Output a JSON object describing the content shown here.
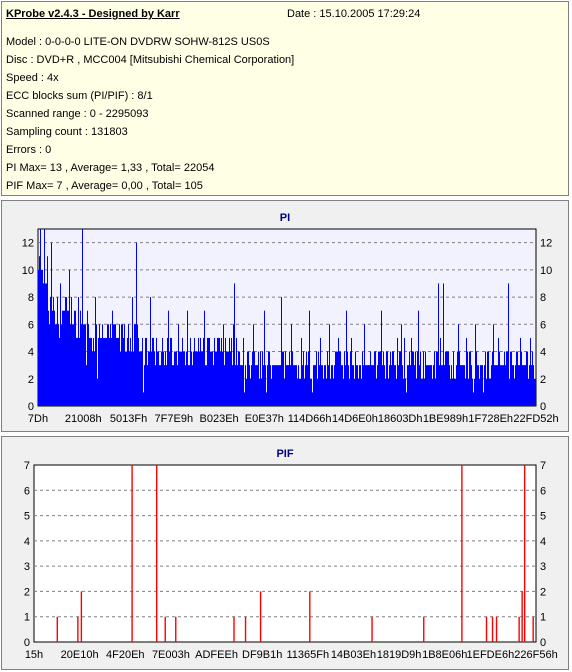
{
  "info": {
    "title": "KProbe v2.4.3 - Designed by Karr",
    "date": "Date : 15.10.2005 17:29:24",
    "lines": [
      "Model : 0-0-0-0 LITE-ON DVDRW SOHW-812S  US0S",
      "Disc : DVD+R , MCC004 [Mitsubishi Chemical Corporation]",
      "Speed : 4x",
      "ECC blocks sum (PI/PIF) : 8/1",
      "Scanned range : 0 - 2295093",
      "Sampling count : 131803",
      "Errors : 0",
      "PI Max= 13 , Average= 1,33 , Total= 22054",
      "PIF Max= 7 , Average= 0,00 , Total= 105"
    ]
  },
  "chart_data": [
    {
      "type": "bar",
      "title": "PI",
      "xlabel": "",
      "ylabel": "",
      "ylim": [
        0,
        13
      ],
      "yticks": [
        0,
        2,
        4,
        6,
        8,
        10,
        12
      ],
      "x_tick_labels": [
        "7Dh",
        "21008h",
        "5013Fh",
        "7F7E9h",
        "B023Eh",
        "E0E37h",
        "114D66h",
        "14D6E0h",
        "18603Dh",
        "1BE989h",
        "1F728Eh",
        "22FD52h"
      ],
      "grid": true,
      "bar_color": "#0000ff",
      "spikes": [
        {
          "x": 0.005,
          "v": 13
        },
        {
          "x": 0.012,
          "v": 13
        },
        {
          "x": 0.027,
          "v": 12
        },
        {
          "x": 0.045,
          "v": 9
        },
        {
          "x": 0.063,
          "v": 10
        },
        {
          "x": 0.088,
          "v": 13
        },
        {
          "x": 0.115,
          "v": 8
        },
        {
          "x": 0.148,
          "v": 7
        },
        {
          "x": 0.19,
          "v": 8
        },
        {
          "x": 0.198,
          "v": 12
        },
        {
          "x": 0.225,
          "v": 8
        },
        {
          "x": 0.262,
          "v": 7
        },
        {
          "x": 0.3,
          "v": 7
        },
        {
          "x": 0.335,
          "v": 7
        },
        {
          "x": 0.372,
          "v": 6
        },
        {
          "x": 0.394,
          "v": 9
        },
        {
          "x": 0.432,
          "v": 6
        },
        {
          "x": 0.455,
          "v": 7
        },
        {
          "x": 0.488,
          "v": 8
        },
        {
          "x": 0.51,
          "v": 6
        },
        {
          "x": 0.545,
          "v": 7
        },
        {
          "x": 0.585,
          "v": 6
        },
        {
          "x": 0.62,
          "v": 7
        },
        {
          "x": 0.655,
          "v": 6
        },
        {
          "x": 0.69,
          "v": 7
        },
        {
          "x": 0.73,
          "v": 6
        },
        {
          "x": 0.765,
          "v": 7
        },
        {
          "x": 0.805,
          "v": 9
        },
        {
          "x": 0.815,
          "v": 9
        },
        {
          "x": 0.845,
          "v": 6
        },
        {
          "x": 0.88,
          "v": 6
        },
        {
          "x": 0.915,
          "v": 6
        },
        {
          "x": 0.946,
          "v": 9
        },
        {
          "x": 0.97,
          "v": 5
        },
        {
          "x": 0.99,
          "v": 5
        }
      ]
    },
    {
      "type": "bar",
      "title": "PIF",
      "xlabel": "",
      "ylabel": "",
      "ylim": [
        0,
        7
      ],
      "yticks": [
        0,
        1,
        2,
        3,
        4,
        5,
        6,
        7
      ],
      "x_tick_labels": [
        "15h",
        "20E10h",
        "4F20Eh",
        "7E003h",
        "ADFEEh",
        "DF9B1h",
        "11365Fh",
        "14B03Eh",
        "1819D9h",
        "1B8E06h",
        "1EFDE6h",
        "226F56h"
      ],
      "grid": true,
      "bar_color": "#ff0000",
      "values": [
        {
          "x": 0.045,
          "v": 1
        },
        {
          "x": 0.086,
          "v": 1
        },
        {
          "x": 0.093,
          "v": 2
        },
        {
          "x": 0.194,
          "v": 7
        },
        {
          "x": 0.243,
          "v": 7
        },
        {
          "x": 0.26,
          "v": 1
        },
        {
          "x": 0.281,
          "v": 1
        },
        {
          "x": 0.397,
          "v": 1
        },
        {
          "x": 0.42,
          "v": 1
        },
        {
          "x": 0.45,
          "v": 2
        },
        {
          "x": 0.548,
          "v": 2
        },
        {
          "x": 0.672,
          "v": 1
        },
        {
          "x": 0.775,
          "v": 1
        },
        {
          "x": 0.851,
          "v": 7
        },
        {
          "x": 0.9,
          "v": 1
        },
        {
          "x": 0.912,
          "v": 1
        },
        {
          "x": 0.92,
          "v": 1
        },
        {
          "x": 0.965,
          "v": 1
        },
        {
          "x": 0.971,
          "v": 2
        },
        {
          "x": 0.976,
          "v": 7
        },
        {
          "x": 0.993,
          "v": 1
        }
      ]
    }
  ]
}
